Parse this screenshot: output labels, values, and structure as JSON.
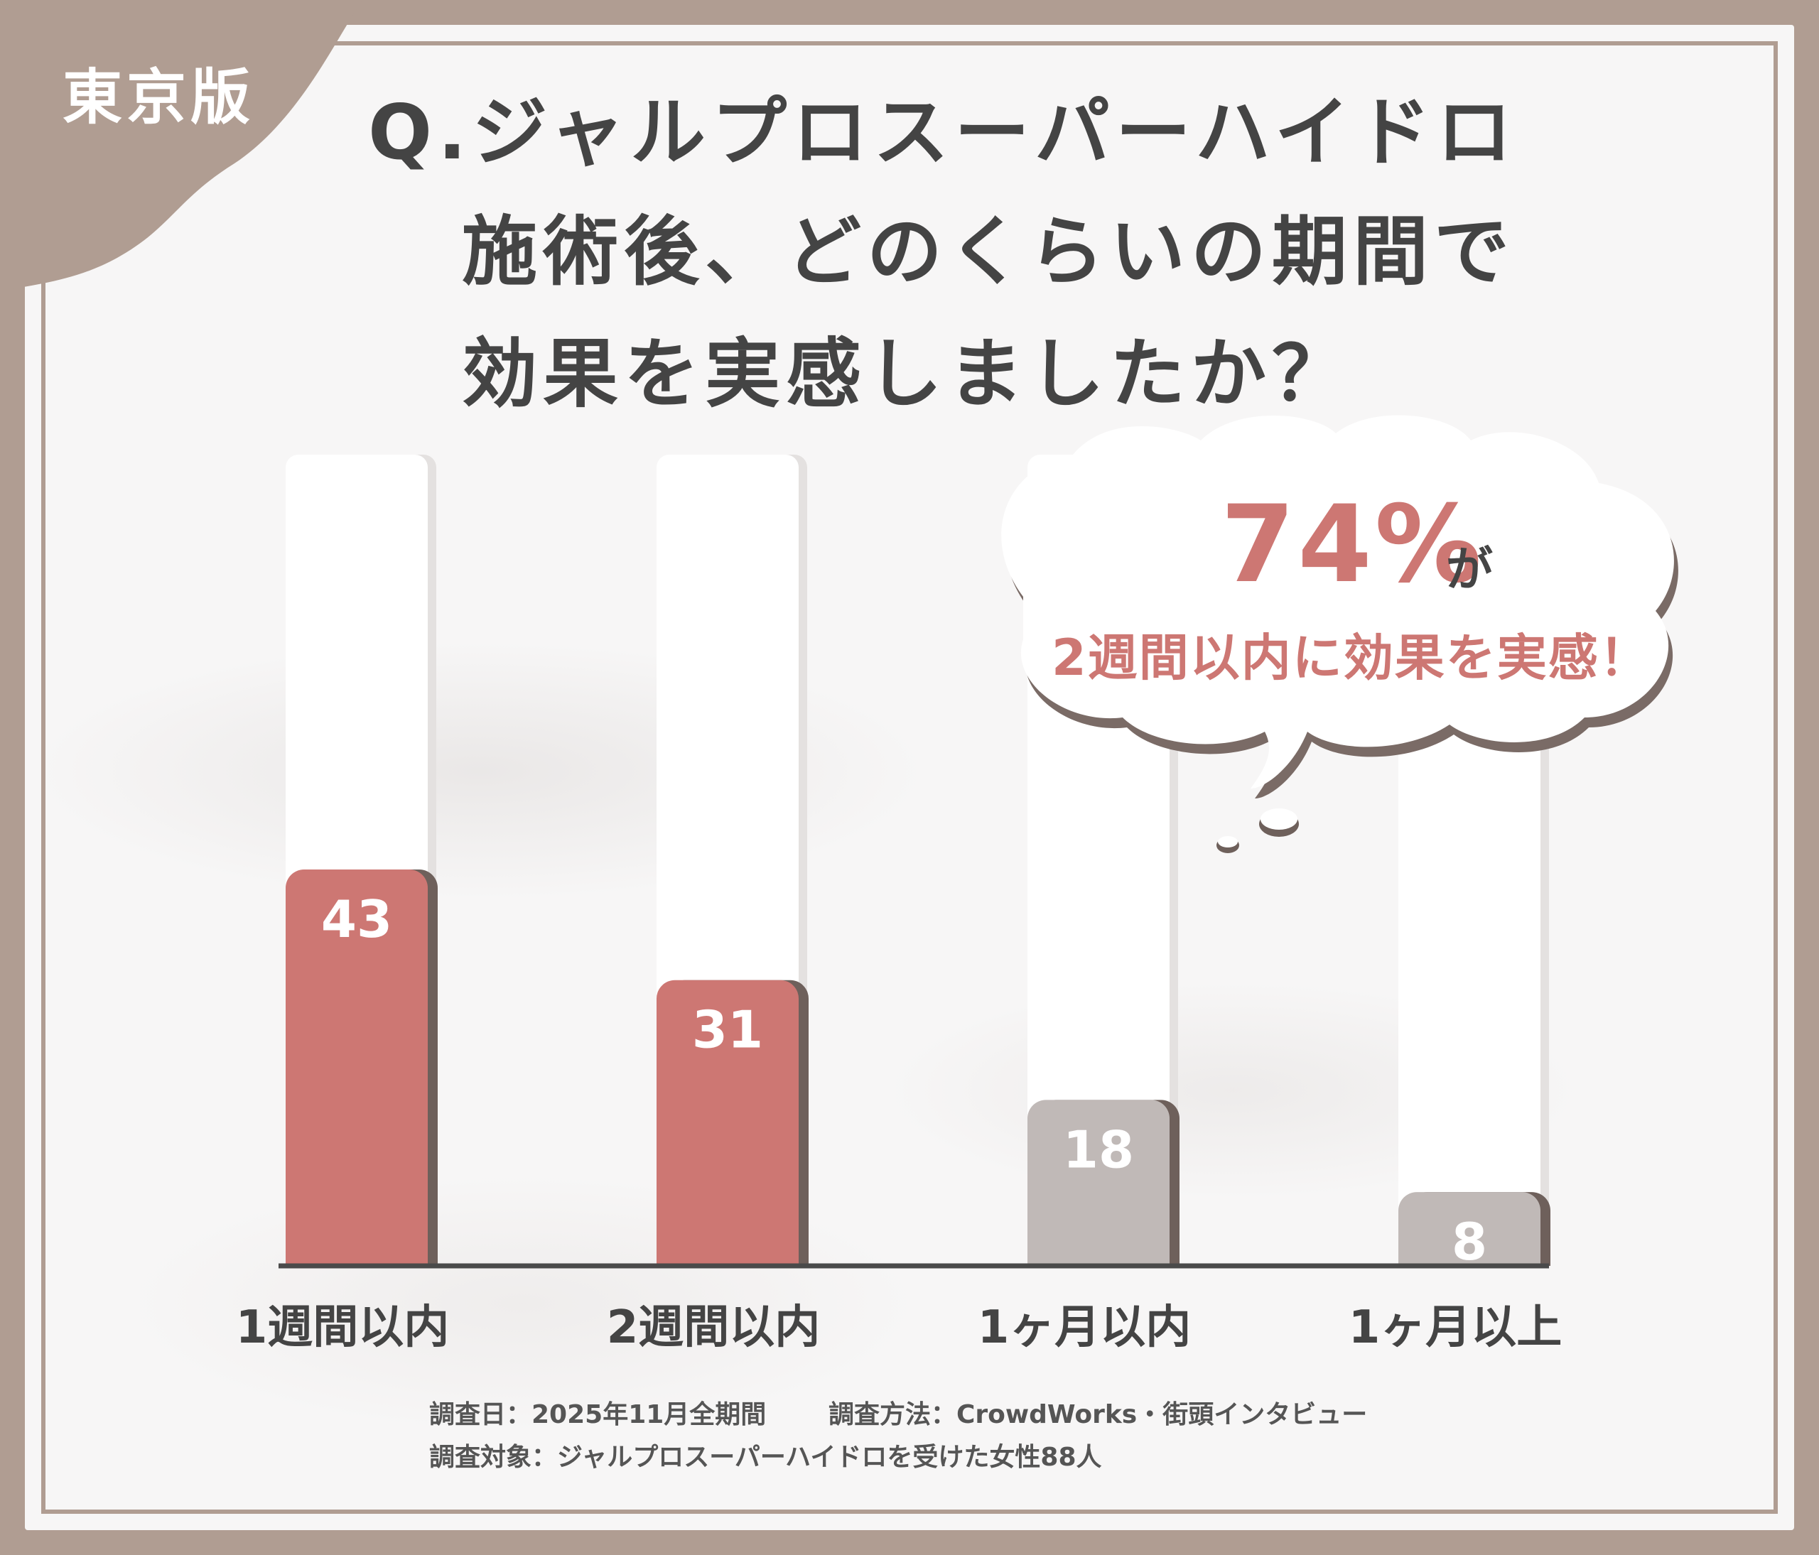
{
  "edition_label": "東京版",
  "title": {
    "line1": "Q.ジャルプロスーパーハイドロ",
    "line2": "施術後、どのくらいの期間で",
    "line3": "効果を実感しましたか？"
  },
  "callout": {
    "percent": "74%",
    "suffix": "が",
    "message": "2週間以内に効果を実感！"
  },
  "chart_data": {
    "type": "bar",
    "categories": [
      "1週間以内",
      "2週間以内",
      "1ヶ月以内",
      "1ヶ月以上"
    ],
    "values": [
      43,
      31,
      18,
      8
    ],
    "data_labels": [
      "43",
      "31",
      "18",
      "8"
    ],
    "ylim": [
      0,
      88
    ],
    "grid": false,
    "legend": "none",
    "colors": [
      "#cd7773",
      "#cd7773",
      "#c0b9b7",
      "#c0b9b7"
    ]
  },
  "colors": {
    "frame": "#b09d92",
    "accent": "#cd7773",
    "muted_bar": "#c0b9b7",
    "text": "#444444"
  },
  "footnotes": {
    "date": "調査日：2025年11月全期間",
    "method": "調査方法：CrowdWorks・街頭インタビュー",
    "target": "調査対象：ジャルプロスーパーハイドロを受けた女性88人"
  }
}
